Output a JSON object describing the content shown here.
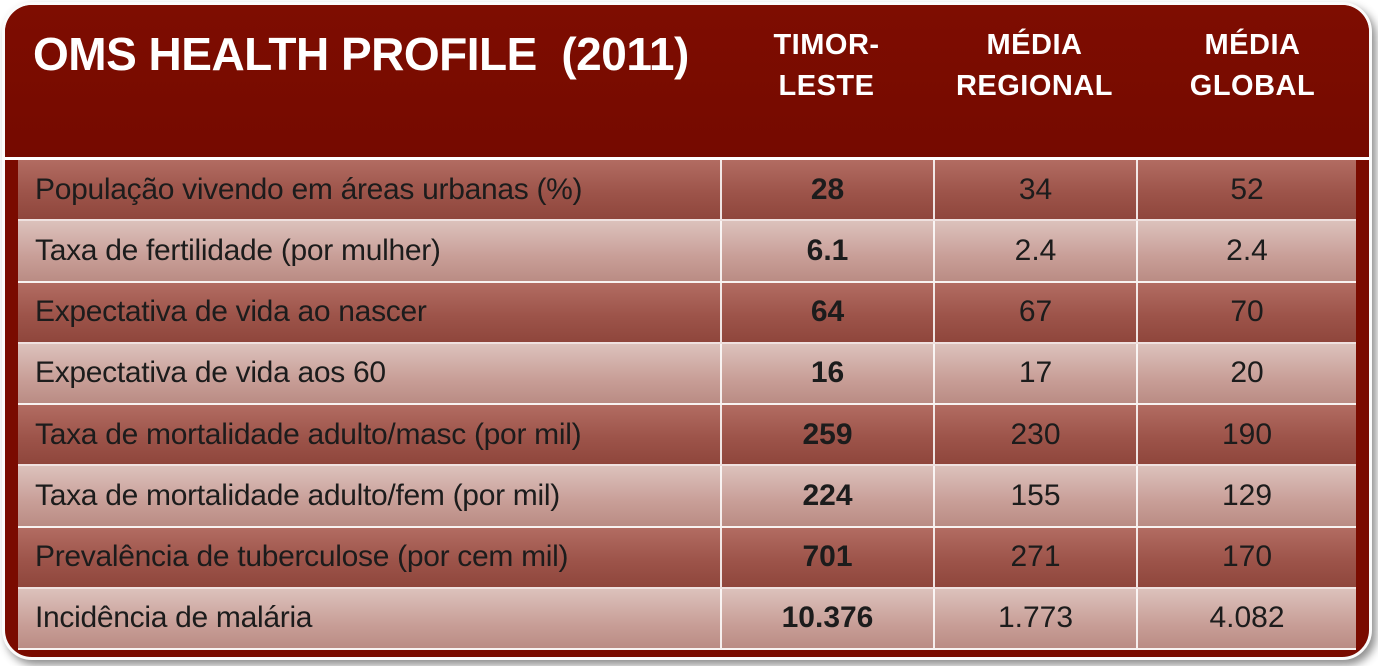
{
  "header": {
    "title": "OMS HEALTH PROFILE  (2011)",
    "columns": [
      "TIMOR-\nLESTE",
      "MÉDIA\nREGIONAL",
      "MÉDIA\nGLOBAL"
    ]
  },
  "chart_data": {
    "type": "table",
    "title": "OMS HEALTH PROFILE  (2011)",
    "columns": [
      "",
      "TIMOR-LESTE",
      "MÉDIA REGIONAL",
      "MÉDIA GLOBAL"
    ],
    "rows": [
      {
        "label": "População vivendo em áreas urbanas (%)",
        "values": [
          "28",
          "34",
          "52"
        ]
      },
      {
        "label": "Taxa de fertilidade (por mulher)",
        "values": [
          "6.1",
          "2.4",
          "2.4"
        ]
      },
      {
        "label": "Expectativa de vida ao nascer",
        "values": [
          "64",
          "67",
          "70"
        ]
      },
      {
        "label": "Expectativa de vida aos 60",
        "values": [
          "16",
          "17",
          "20"
        ]
      },
      {
        "label": "Taxa de mortalidade adulto/masc (por mil)",
        "values": [
          "259",
          "230",
          "190"
        ]
      },
      {
        "label": "Taxa de mortalidade adulto/fem (por mil)",
        "values": [
          "224",
          "155",
          "129"
        ]
      },
      {
        "label": "Prevalência de tuberculose (por cem mil)",
        "values": [
          "701",
          "271",
          "170"
        ]
      },
      {
        "label": "Incidência de malária",
        "values": [
          "10.376",
          "1.773",
          "4.082"
        ]
      }
    ]
  },
  "colors": {
    "slide_background": "#7a0b00",
    "header_text": "#ffffff",
    "row_dark": "#9d544a",
    "row_light": "#c89e97",
    "row_text": "#1c1c1c",
    "divider": "#ffffff"
  }
}
